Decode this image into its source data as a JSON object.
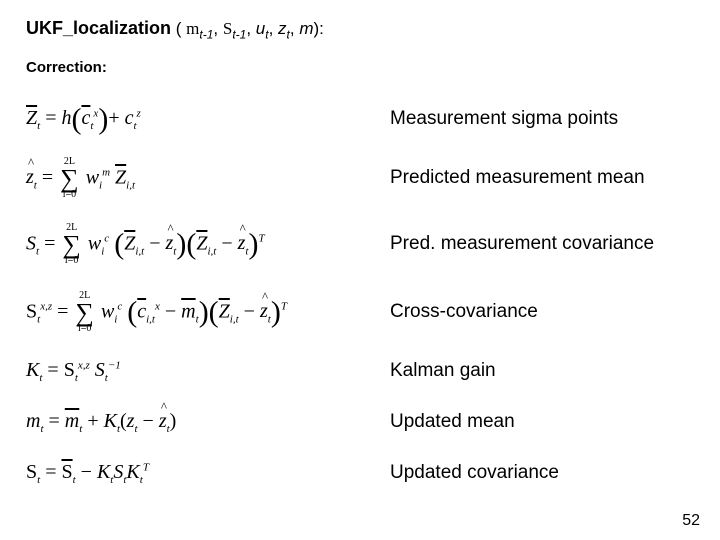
{
  "title": {
    "fn": "UKF_localization",
    "open": " ( ",
    "mu": "m",
    "sub1": "t-1",
    "comma1": ", ",
    "Sigma": "S",
    "sub2": "t-1",
    "comma2": ", ",
    "u": "u",
    "sub3": "t",
    "comma3": ", ",
    "z": "z",
    "sub4": "t",
    "comma4": ", ",
    "m": "m",
    "close": "):"
  },
  "section": "Correction:",
  "rows": [
    {
      "desc": "Measurement sigma points"
    },
    {
      "desc": "Predicted measurement mean"
    },
    {
      "desc": "Pred. measurement covariance"
    },
    {
      "desc": "Cross-covariance"
    },
    {
      "desc": "Kalman gain"
    },
    {
      "desc": "Updated mean"
    },
    {
      "desc": "Updated covariance"
    }
  ],
  "eq": {
    "r1": {
      "Zbar": "Z",
      "t": "t",
      "eq": " = ",
      "h": "h",
      "chi": "c",
      "xsup": "x",
      "plus": "+ ",
      "zsup": "z"
    },
    "r2": {
      "zhat": "z",
      "t": "t",
      "eq": " = ",
      "top": "2L",
      "bot": "i=0",
      "w": "w",
      "msup": "m",
      "isub": "i",
      "Zbar": "Z",
      "it": "i,t"
    },
    "r3": {
      "S": "S",
      "t": "t",
      "eq": " = ",
      "top": "2L",
      "bot": "i=0",
      "w": "w",
      "csup": "c",
      "isub": "i",
      "Zbar": "Z",
      "it": "i,t",
      "minus": " − ",
      "zhat": "z",
      "Tsup": "T"
    },
    "r4": {
      "Sigma": "S",
      "xz": "x,z",
      "t": "t",
      "eq": " = ",
      "top": "2L",
      "bot": "i=0",
      "w": "w",
      "csup": "c",
      "isub": "i",
      "chibar": "c",
      "xsup": "x",
      "it": "i,t",
      "minus": " − ",
      "mubar": "m",
      "Zbar": "Z",
      "zhat": "z",
      "Tsup": "T"
    },
    "r5": {
      "K": "K",
      "t": "t",
      "eq": " = ",
      "Sigma": "S",
      "xz": "x,z",
      "S": "S",
      "inv": "−1"
    },
    "r6": {
      "mu": "m",
      "t": "t",
      "eq": " = ",
      "mubar": "m",
      "plus": " + ",
      "K": "K",
      "z": "z",
      "minus": " − ",
      "zhat": "z"
    },
    "r7": {
      "Sigma": "S",
      "t": "t",
      "eq": " = ",
      "Sigmabar": "S",
      "minus": " − ",
      "K": "K",
      "S": "S",
      "Tsup": "T"
    }
  },
  "pagenum": "52"
}
